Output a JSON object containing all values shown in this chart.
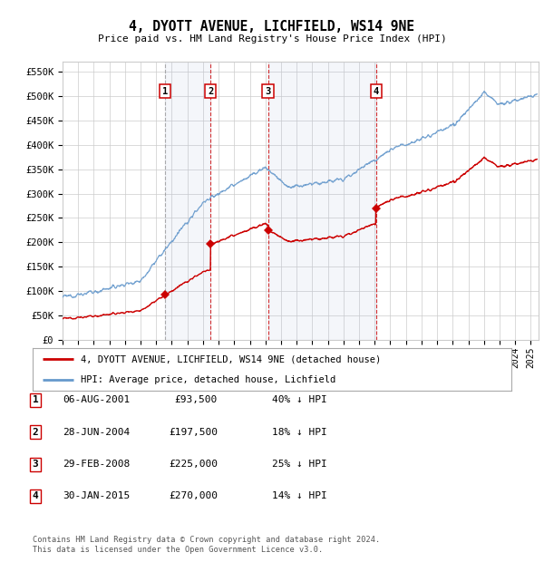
{
  "title": "4, DYOTT AVENUE, LICHFIELD, WS14 9NE",
  "subtitle": "Price paid vs. HM Land Registry's House Price Index (HPI)",
  "ylabel_ticks": [
    "£0",
    "£50K",
    "£100K",
    "£150K",
    "£200K",
    "£250K",
    "£300K",
    "£350K",
    "£400K",
    "£450K",
    "£500K",
    "£550K"
  ],
  "ytick_values": [
    0,
    50000,
    100000,
    150000,
    200000,
    250000,
    300000,
    350000,
    400000,
    450000,
    500000,
    550000
  ],
  "sales": [
    {
      "label": "1",
      "date": "06-AUG-2001",
      "price": 93500,
      "hpi_pct": "40% ↓ HPI",
      "x_year": 2001.59
    },
    {
      "label": "2",
      "date": "28-JUN-2004",
      "price": 197500,
      "hpi_pct": "18% ↓ HPI",
      "x_year": 2004.49
    },
    {
      "label": "3",
      "date": "29-FEB-2008",
      "price": 225000,
      "hpi_pct": "25% ↓ HPI",
      "x_year": 2008.16
    },
    {
      "label": "4",
      "date": "30-JAN-2015",
      "price": 270000,
      "hpi_pct": "14% ↓ HPI",
      "x_year": 2015.08
    }
  ],
  "legend_line1": "4, DYOTT AVENUE, LICHFIELD, WS14 9NE (detached house)",
  "legend_line2": "HPI: Average price, detached house, Lichfield",
  "footnote1": "Contains HM Land Registry data © Crown copyright and database right 2024.",
  "footnote2": "This data is licensed under the Open Government Licence v3.0.",
  "price_color": "#cc0000",
  "hpi_color": "#6699cc",
  "vline_color_gray": "#999999",
  "vline_color_red": "#cc0000",
  "background_color": "#ffffff",
  "xmin": 1995.0,
  "xmax": 2025.5,
  "ymin": 0,
  "ymax": 570000
}
